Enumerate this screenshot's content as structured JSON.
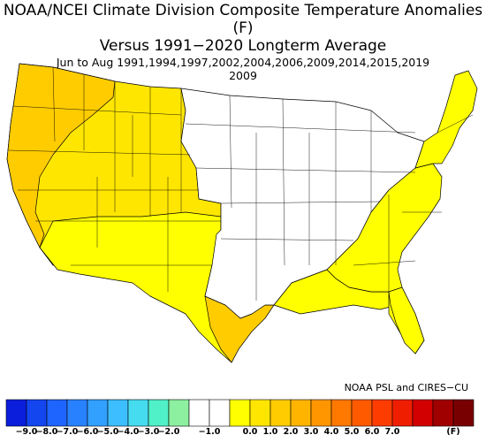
{
  "title": {
    "line1": "NOAA/NCEI Climate Division Composite Temperature Anomalies (F)",
    "line2": "Versus 1991−2020 Longterm Average",
    "line3": "Jun to Aug   1991,1994,1997,2002,2004,2006,2009,2014,2015,2019",
    "line4": "2009"
  },
  "credit": "NOAA PSL and CIRES−CU",
  "colors": {
    "zero": "#ffff00",
    "light": "#ffe600",
    "mid": "#ffcc00",
    "high": "#fbb31a",
    "none": "#ffffff",
    "border": "#000000"
  },
  "regions": [
    {
      "name": "pacific-northwest",
      "anomaly": "1.0-2.0",
      "color_key": "mid"
    },
    {
      "name": "west-interior",
      "anomaly": "0.0-1.0",
      "color_key": "light"
    },
    {
      "name": "southwest",
      "anomaly": "0.0-1.0",
      "color_key": "zero"
    },
    {
      "name": "texas-coast",
      "anomaly": "0.0-1.0",
      "color_key": "mid"
    },
    {
      "name": "gulf-coast",
      "anomaly": "0.0-1.0",
      "color_key": "zero"
    },
    {
      "name": "southeast",
      "anomaly": "0.0-1.0",
      "color_key": "zero"
    },
    {
      "name": "northeast",
      "anomaly": "0.0-1.0",
      "color_key": "zero"
    },
    {
      "name": "central-plains",
      "anomaly": "-1.0-0.0",
      "color_key": "none"
    }
  ],
  "colorbar": {
    "labels": [
      "−9.0",
      "−8.0",
      "−7.0",
      "−6.0",
      "−5.0",
      "−4.0",
      "−3.0",
      "−2.0",
      "−1.0",
      "0.0",
      "1.0",
      "2.0",
      "3.0",
      "4.0",
      "5.0",
      "6.0",
      "7.0"
    ],
    "end_label": "(F)",
    "colors": [
      "#0a1edc",
      "#1446f0",
      "#1e64ff",
      "#2882ff",
      "#32a0ff",
      "#3cbeff",
      "#46dcf0",
      "#50f0c8",
      "#8cf0a0",
      "#ffffff",
      "#ffffff",
      "#ffff00",
      "#ffe600",
      "#ffcc00",
      "#ffb400",
      "#ff9600",
      "#ff7800",
      "#ff5a00",
      "#ff3c00",
      "#f01e00",
      "#d20000",
      "#a00000",
      "#780000"
    ]
  }
}
